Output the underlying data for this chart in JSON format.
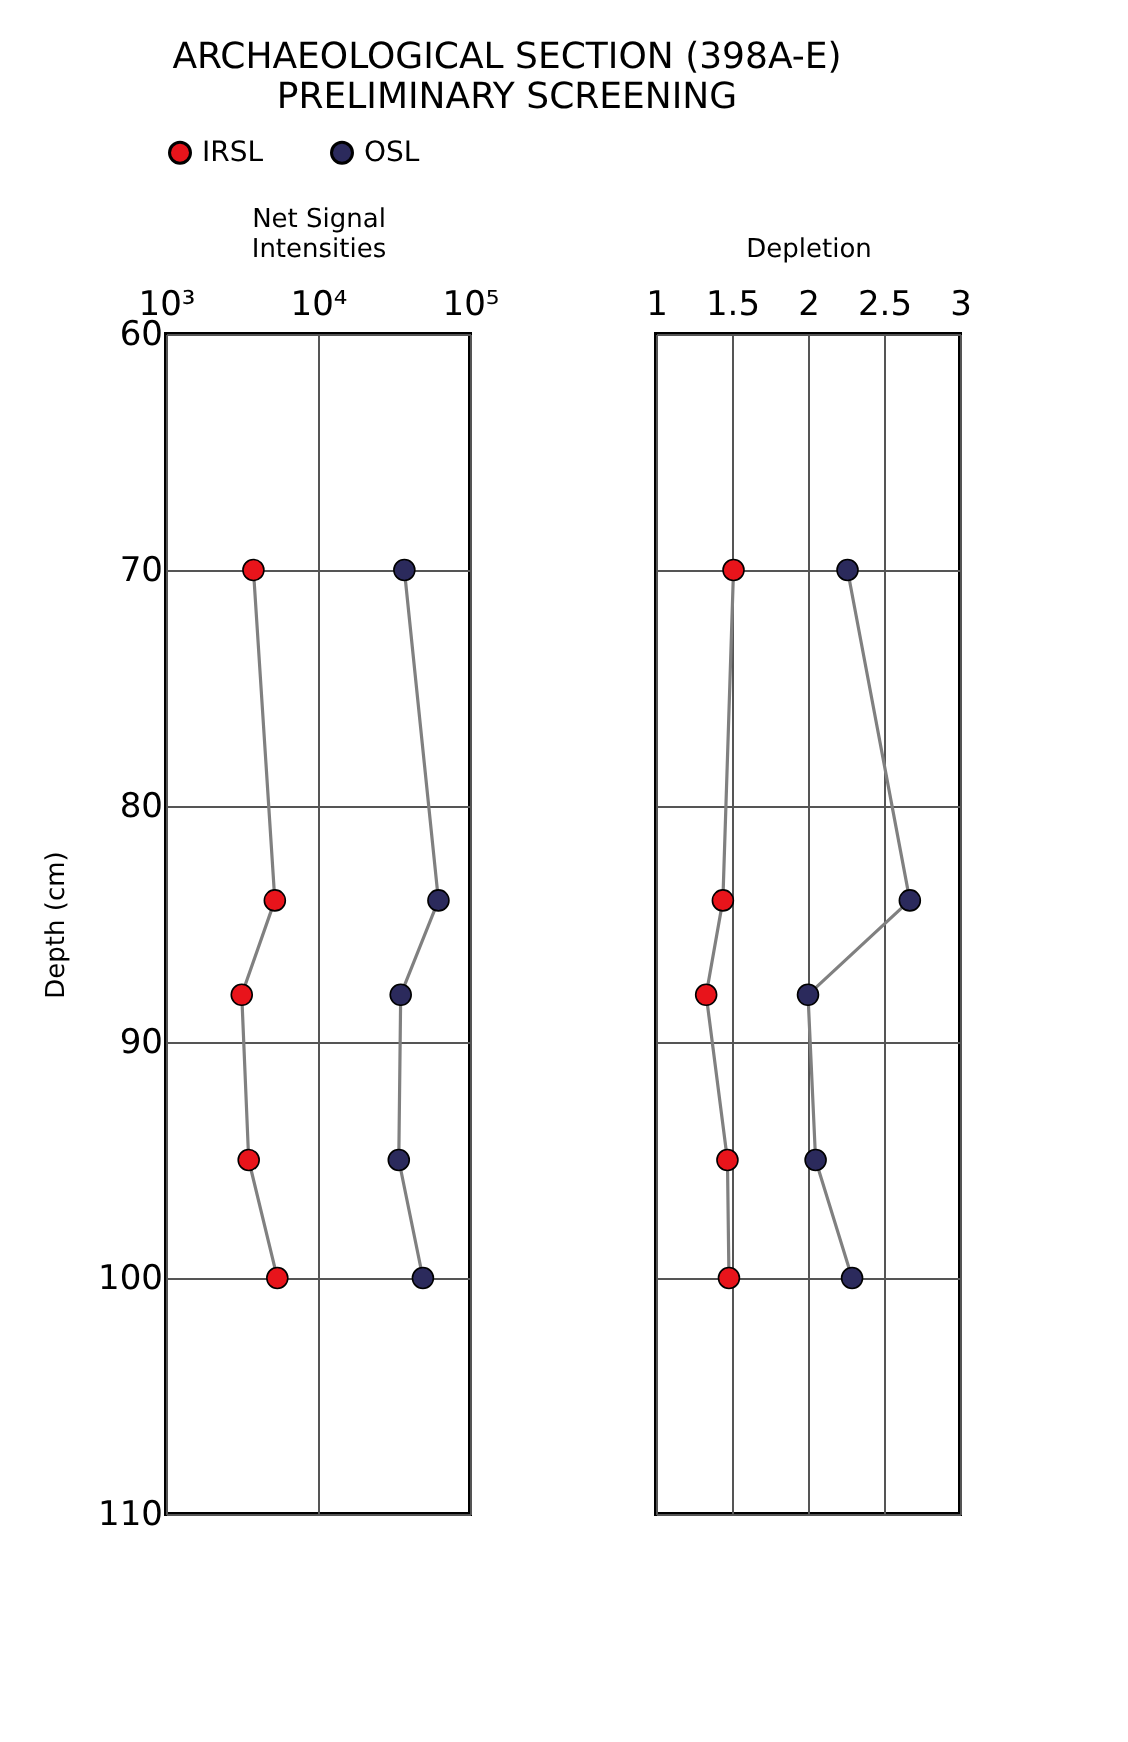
{
  "chart_data": [
    {
      "type": "line",
      "title": "ARCHAEOLOGICAL SECTION (398A-E)\nPRELIMINARY SCREENING",
      "xlabel": "Net Signal\nIntensities",
      "ylabel": "Depth (cm)",
      "log": "x",
      "xlim": [
        1000,
        100000
      ],
      "xticks": [
        {
          "value": 1000,
          "label": "10³"
        },
        {
          "value": 10000,
          "label": "10⁴"
        },
        {
          "value": 100000,
          "label": "10⁵"
        }
      ],
      "ylim": [
        110,
        60
      ],
      "yticks": [
        60,
        70,
        80,
        90,
        100,
        110
      ],
      "grid": true,
      "legend": "top",
      "marker": "circle",
      "series": [
        {
          "name": "IRSL",
          "color": "#e8141b",
          "x": [
            3760,
            5200,
            3150,
            3500,
            5400
          ],
          "values": [
            70,
            84,
            88,
            95,
            100
          ]
        },
        {
          "name": "OSL",
          "color": "#2b2a5c",
          "x": [
            37000,
            62000,
            35000,
            34000,
            49000
          ],
          "values": [
            70,
            84,
            88,
            95,
            100
          ]
        }
      ]
    },
    {
      "type": "line",
      "xlabel": "Depletion",
      "xlim": [
        1,
        3
      ],
      "xticks": [
        1,
        1.5,
        2,
        2.5,
        3
      ],
      "ylim": [
        110,
        60
      ],
      "yticks": [
        60,
        70,
        80,
        90,
        100,
        110
      ],
      "tick_labels": "x",
      "grid": true,
      "marker": "circle",
      "series": [
        {
          "color": "#e8141b",
          "x": [
            1.51,
            1.44,
            1.33,
            1.47,
            1.48
          ],
          "values": [
            70,
            84,
            88,
            95,
            100
          ]
        },
        {
          "color": "#2b2a5c",
          "x": [
            2.26,
            2.67,
            2.0,
            2.05,
            2.29
          ],
          "values": [
            70,
            84,
            88,
            95,
            100
          ]
        }
      ]
    }
  ]
}
